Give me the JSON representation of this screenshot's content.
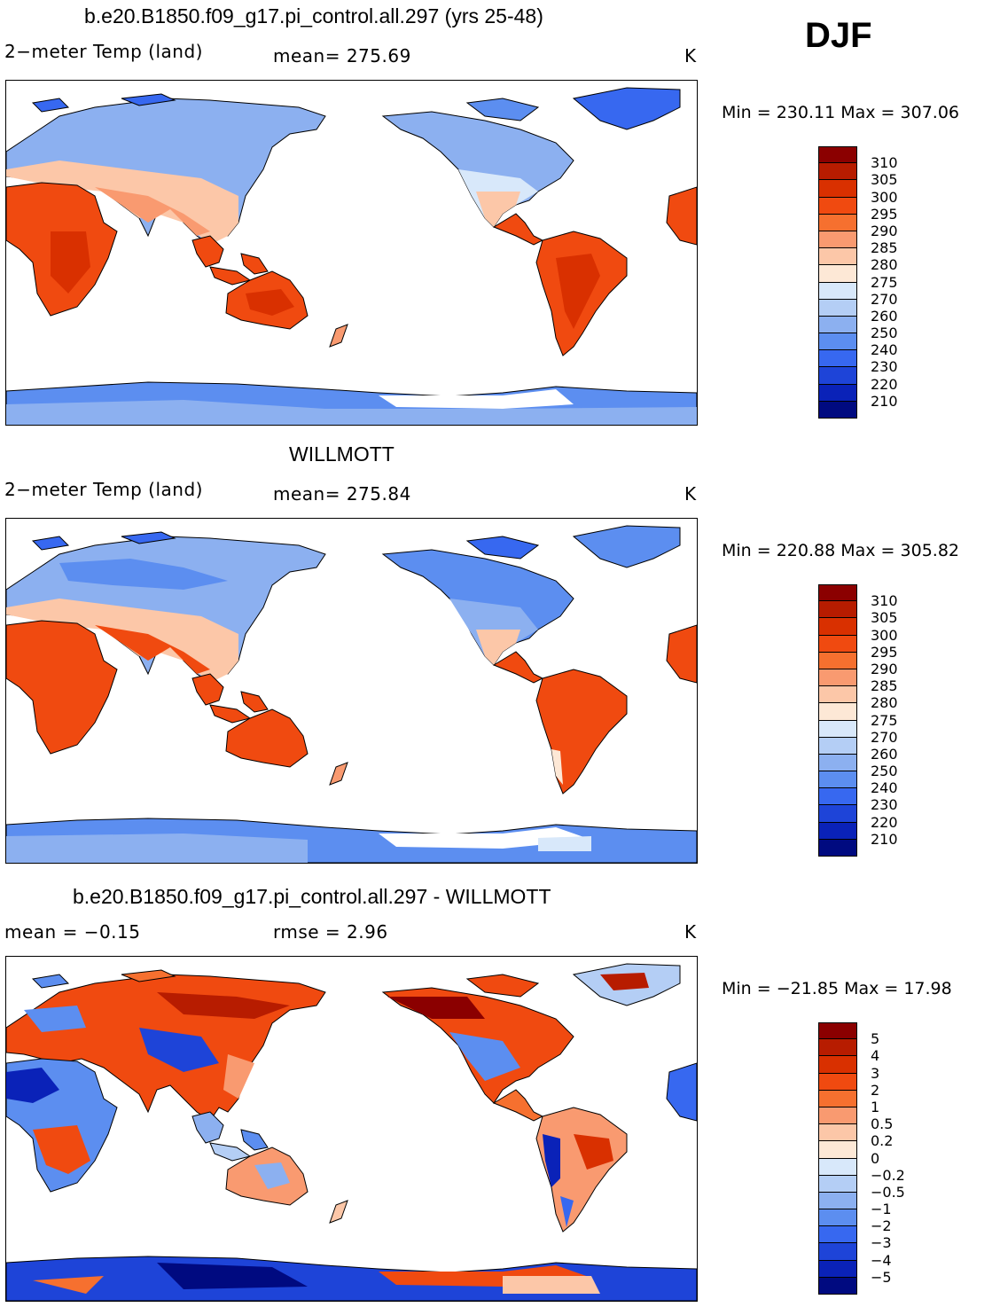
{
  "season": "DJF",
  "panels": [
    {
      "title": "b.e20.B1850.f09_g17.pi_control.all.297 (yrs 25-48)",
      "left_label": "2−meter Temp (land)",
      "center_label": "mean= 275.69",
      "unit": "K",
      "minmax": "Min = 230.11 Max = 307.06",
      "scale": "abs"
    },
    {
      "title": "WILLMOTT",
      "left_label": "2−meter Temp (land)",
      "center_label": "mean= 275.84",
      "unit": "K",
      "minmax": "Min = 220.88 Max = 305.82",
      "scale": "abs"
    },
    {
      "title": "b.e20.B1850.f09_g17.pi_control.all.297 - WILLMOTT",
      "left_label": "mean =   −0.15",
      "center_label": "rmse =    2.96",
      "unit": "K",
      "minmax": "Min = −21.85 Max =   17.98",
      "scale": "diff"
    }
  ],
  "scales": {
    "abs": {
      "labels": [
        "310",
        "305",
        "300",
        "295",
        "290",
        "285",
        "280",
        "275",
        "270",
        "260",
        "250",
        "240",
        "230",
        "220",
        "210"
      ],
      "colors": [
        "#8b0000",
        "#b71c00",
        "#d93000",
        "#f04a10",
        "#f6702f",
        "#f99a70",
        "#fcc7a8",
        "#fde8d6",
        "#d8e8fa",
        "#b4cef5",
        "#8cb0f0",
        "#5c8ef0",
        "#3768f0",
        "#1e44d8",
        "#0a22b8",
        "#000a80"
      ]
    },
    "diff": {
      "labels": [
        "5",
        "4",
        "3",
        "2",
        "1",
        "0.5",
        "0.2",
        "0",
        "−0.2",
        "−0.5",
        "−1",
        "−2",
        "−3",
        "−4",
        "−5"
      ],
      "colors": [
        "#8b0000",
        "#b71c00",
        "#d93000",
        "#f04a10",
        "#f6702f",
        "#f99a70",
        "#fcc7a8",
        "#fde8d6",
        "#d8e8fa",
        "#b4cef5",
        "#8cb0f0",
        "#5c8ef0",
        "#3768f0",
        "#1e44d8",
        "#0a22b8",
        "#000a80"
      ]
    }
  }
}
